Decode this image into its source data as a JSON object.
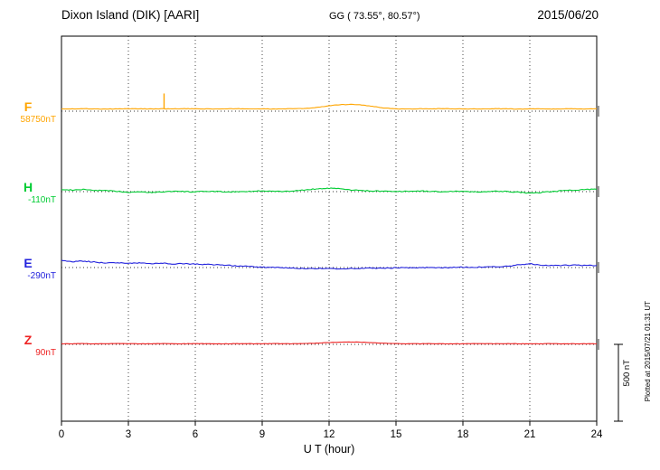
{
  "header": {
    "station": "Dixon Island (DIK)  [AARI]",
    "coords": "GG ( 73.55°,  80.57°)",
    "date": "2015/06/20"
  },
  "side": {
    "plotted_at": "Plotted at 2015/07/21 01:31 UT"
  },
  "chart_data": {
    "type": "line",
    "title": "Magnetogram Dixon Island (DIK) [AARI] 2015/06/20",
    "xlabel": "U T (hour)",
    "xlim": [
      0,
      24
    ],
    "x_ticks": [
      0,
      3,
      6,
      9,
      12,
      15,
      18,
      21,
      24
    ],
    "x_step_hours": 0.5,
    "grid": "dotted-vertical-every-3h",
    "scale_bar": {
      "label": "500 nT",
      "nT": 500
    },
    "series": [
      {
        "name": "F",
        "baseline_label": "58750nT",
        "baseline_nT": 58750,
        "color": "#FFA500",
        "noise_nT": 1.5,
        "spikes": [
          {
            "x": 4.6,
            "nT": -100
          }
        ],
        "values": [
          15,
          15,
          16,
          15,
          14,
          15,
          16,
          15,
          15,
          15,
          15,
          16,
          15,
          15,
          14,
          15,
          16,
          15,
          15,
          14,
          15,
          16,
          18,
          25,
          35,
          42,
          45,
          40,
          30,
          20,
          15,
          14,
          15,
          15,
          16,
          15,
          14,
          15,
          15,
          16,
          15,
          14,
          15,
          15,
          14,
          15,
          15,
          14,
          15
        ]
      },
      {
        "name": "H",
        "baseline_label": "-110nT",
        "baseline_nT": -110,
        "color": "#00CC33",
        "noise_nT": 3,
        "spikes": [],
        "values": [
          12,
          10,
          14,
          8,
          6,
          2,
          -4,
          0,
          -6,
          -2,
          2,
          0,
          -2,
          2,
          0,
          -2,
          0,
          2,
          4,
          2,
          0,
          6,
          12,
          18,
          22,
          18,
          10,
          6,
          4,
          2,
          0,
          2,
          4,
          2,
          0,
          2,
          0,
          -2,
          0,
          2,
          0,
          -4,
          -10,
          -6,
          0,
          6,
          10,
          14,
          16
        ]
      },
      {
        "name": "E",
        "baseline_label": "-290nT",
        "baseline_nT": -290,
        "color": "#2222DD",
        "noise_nT": 3,
        "spikes": [],
        "values": [
          45,
          38,
          42,
          35,
          30,
          32,
          28,
          30,
          26,
          28,
          24,
          26,
          22,
          20,
          18,
          14,
          10,
          6,
          2,
          0,
          -2,
          -4,
          -6,
          -6,
          -8,
          -8,
          -6,
          -6,
          -4,
          -4,
          -2,
          -2,
          0,
          0,
          -2,
          0,
          2,
          2,
          4,
          6,
          8,
          18,
          24,
          16,
          12,
          14,
          16,
          14,
          12
        ]
      },
      {
        "name": "Z",
        "baseline_label": "90nT",
        "baseline_nT": 90,
        "color": "#EE2222",
        "noise_nT": 1,
        "spikes": [],
        "values": [
          4,
          4,
          5,
          4,
          4,
          5,
          4,
          4,
          4,
          5,
          4,
          4,
          5,
          4,
          4,
          4,
          5,
          4,
          4,
          5,
          4,
          4,
          6,
          8,
          12,
          14,
          16,
          14,
          10,
          7,
          5,
          4,
          4,
          5,
          4,
          4,
          4,
          5,
          4,
          4,
          5,
          4,
          4,
          4,
          5,
          4,
          4,
          4,
          4
        ]
      }
    ]
  }
}
